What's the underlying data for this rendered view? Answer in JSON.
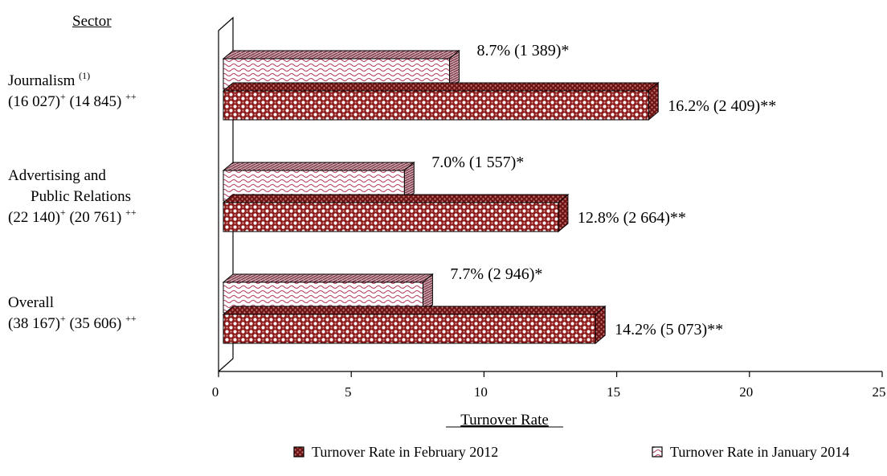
{
  "chart_data": {
    "type": "bar",
    "orientation": "horizontal",
    "y_header": "Sector",
    "xlabel": "Turnover Rate",
    "xlim": [
      0,
      25
    ],
    "xticks": [
      0,
      5,
      10,
      15,
      20,
      25
    ],
    "categories": [
      {
        "lines": [
          {
            "name": "Journalism",
            "sup": "(1)"
          },
          {
            "parts": [
              {
                "t": "(16 027)"
              },
              {
                "sup": "+"
              },
              {
                "t": " (14 845) "
              },
              {
                "sup": "++"
              }
            ]
          }
        ]
      },
      {
        "lines": [
          {
            "name": "Advertising and"
          },
          {
            "name": "Public Relations",
            "indent": true
          },
          {
            "parts": [
              {
                "t": "(22 140)"
              },
              {
                "sup": "+"
              },
              {
                "t": " (20 761) "
              },
              {
                "sup": "++"
              }
            ]
          }
        ]
      },
      {
        "lines": [
          {
            "name": "Overall"
          },
          {
            "parts": [
              {
                "t": "(38 167)"
              },
              {
                "sup": "+"
              },
              {
                "t": " (35 606) "
              },
              {
                "sup": "++"
              }
            ]
          }
        ]
      }
    ],
    "series": [
      {
        "name": "Turnover Rate in January 2014",
        "values": [
          8.7,
          7.0,
          7.7
        ],
        "labels": [
          "8.7% (1 389)*",
          "7.0% (1 557)*",
          "7.7% (2 946)*"
        ],
        "pattern": "wave",
        "color": "#b03a5a"
      },
      {
        "name": "Turnover Rate in February 2012",
        "values": [
          16.2,
          12.8,
          14.2
        ],
        "labels": [
          "16.2% (2 409)**",
          "12.8% (2 664)**",
          "14.2% (5 073)**"
        ],
        "pattern": "checker",
        "color": "#8b1a1a"
      }
    ],
    "legend": {
      "position": "bottom",
      "items": [
        {
          "label": "Turnover Rate in February 2012",
          "pattern": "checker"
        },
        {
          "label": "Turnover Rate in January 2014",
          "pattern": "wave"
        }
      ]
    },
    "grid": false
  }
}
